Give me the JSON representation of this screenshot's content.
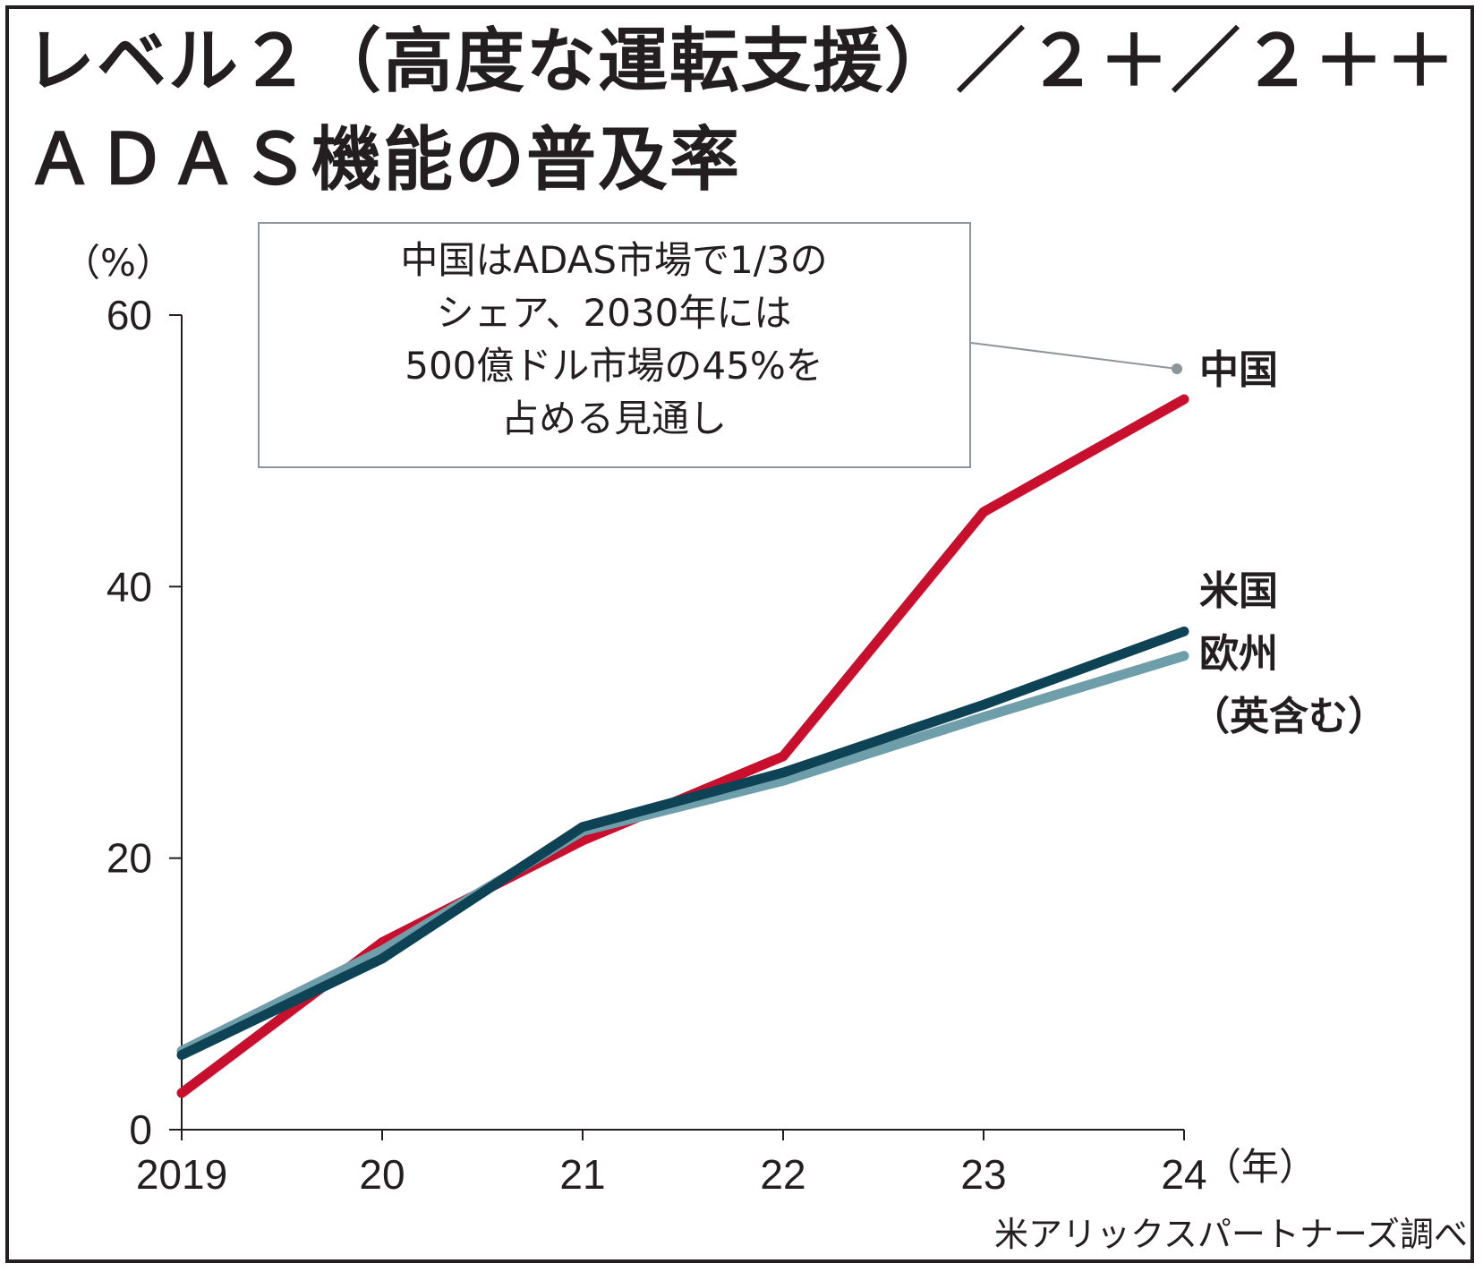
{
  "title_line1": "レベル２（高度な運転支援）／２＋／２＋＋",
  "title_line2": "ＡＤＡＳ機能の普及率",
  "y_unit": "（%）",
  "x_unit": "（年）",
  "source": "米アリックスパートナーズ調べ",
  "annotation": {
    "lines": [
      "中国はADAS市場で1/3の",
      "シェア、2030年には",
      "500億ドル市場の45%を",
      "占める見通し"
    ]
  },
  "series_labels": {
    "china": "中国",
    "us": "米国",
    "eu_line1": "欧州",
    "eu_line2": "（英含む）"
  },
  "chart_data": {
    "type": "line",
    "x": [
      "2019",
      "20",
      "21",
      "22",
      "23",
      "24"
    ],
    "ylim": [
      0,
      60
    ],
    "yticks": [
      "0",
      "20",
      "40",
      "60"
    ],
    "grid": false,
    "series": [
      {
        "name": "中国",
        "values": [
          2.7,
          13.8,
          21.3,
          27.5,
          45.5,
          53.8
        ],
        "color": "#c8102e"
      },
      {
        "name": "米国",
        "values": [
          5.5,
          12.6,
          22.3,
          26.3,
          31.3,
          36.7
        ],
        "color": "#0e4356"
      },
      {
        "name": "欧州（英含む）",
        "values": [
          5.8,
          13.2,
          22.0,
          25.7,
          30.4,
          34.9
        ],
        "color": "#6e9eaa"
      }
    ]
  }
}
